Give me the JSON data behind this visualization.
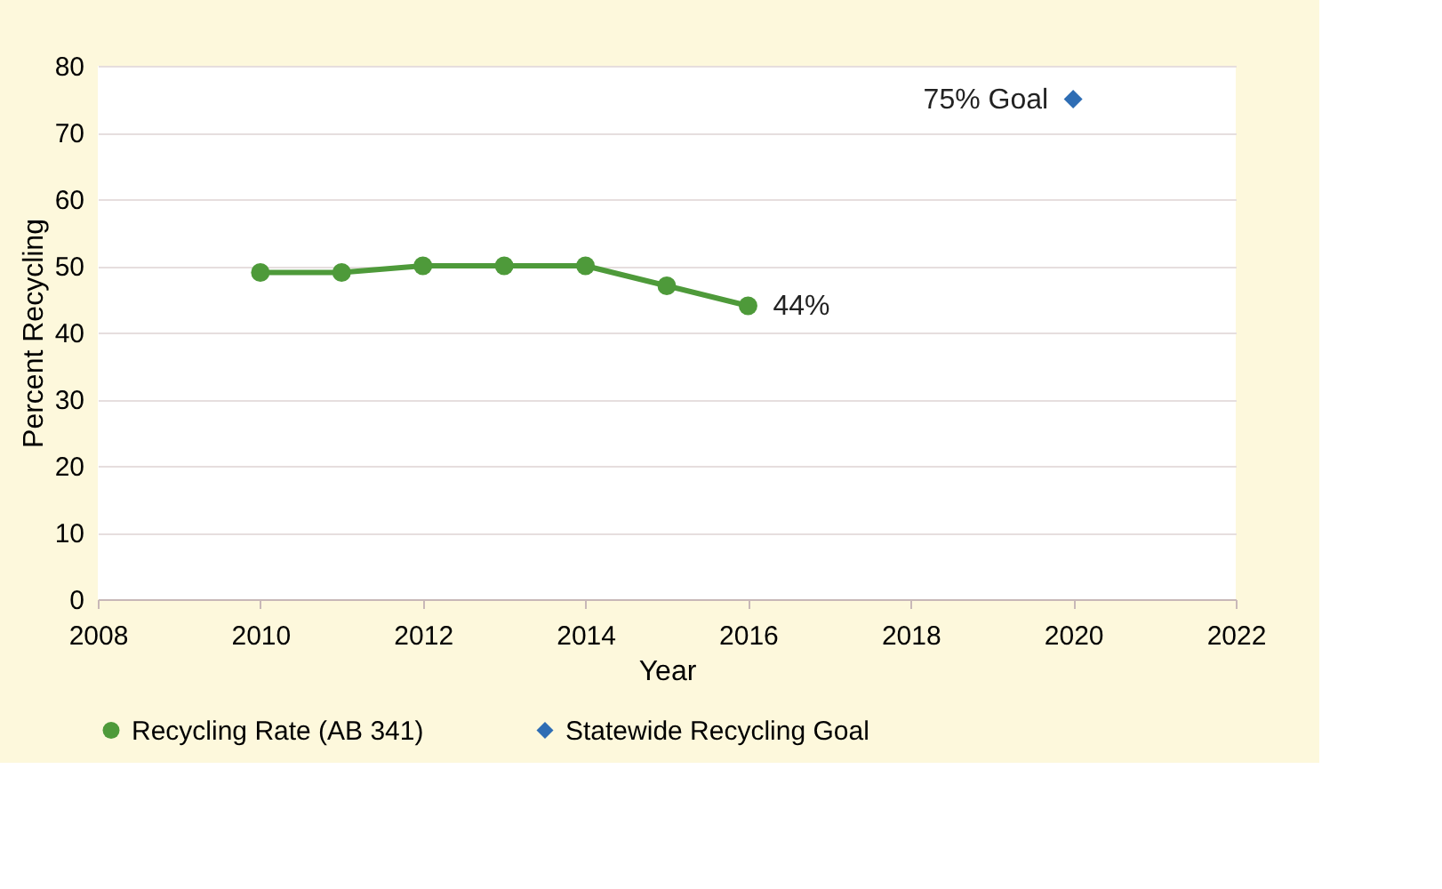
{
  "chart_data": {
    "type": "line",
    "xlabel": "Year",
    "ylabel": "Percent Recycling",
    "xlim": [
      2008,
      2022
    ],
    "xticks": [
      2008,
      2010,
      2012,
      2014,
      2016,
      2018,
      2020,
      2022
    ],
    "ylim": [
      0,
      80
    ],
    "yticks": [
      0,
      10,
      20,
      30,
      40,
      50,
      60,
      70,
      80
    ],
    "grid": "y",
    "legend": "bottom",
    "marker": "circle",
    "line_style": "solid",
    "series": [
      {
        "name": "Recycling Rate (AB 341)",
        "type": "line",
        "color": "#4e9a3a",
        "x": [
          2010,
          2011,
          2012,
          2013,
          2014,
          2015,
          2016
        ],
        "values": [
          49,
          49,
          50,
          50,
          50,
          47,
          44
        ]
      },
      {
        "name": "Statewide Recycling Goal",
        "type": "scatter",
        "marker": "diamond",
        "color": "#2e6db4",
        "x": [
          2020
        ],
        "values": [
          75
        ]
      }
    ],
    "annotations": [
      {
        "text": "44%",
        "x": 2016,
        "y": 44
      },
      {
        "text": "75% Goal",
        "x": 2020,
        "y": 75
      }
    ]
  }
}
